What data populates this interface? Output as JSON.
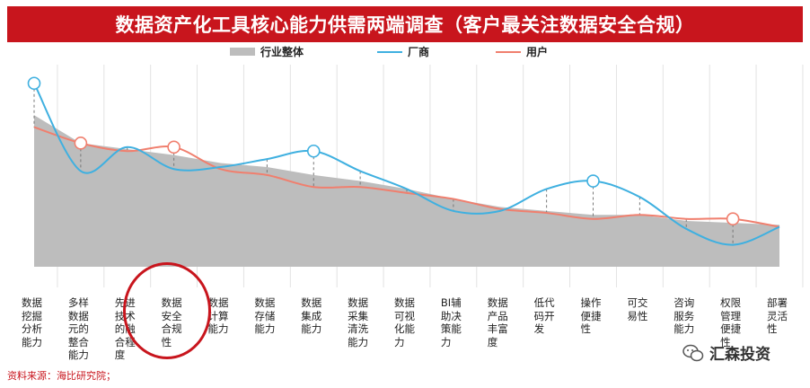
{
  "title": "数据资产化工具核心能力供需两端调查（客户最关注数据安全合规）",
  "legend": {
    "overall": "行业整体",
    "vendor": "厂商",
    "user": "用户"
  },
  "source": "资料来源：海比研究院；",
  "watermark": "汇森投资",
  "colors": {
    "title_bg": "#c8151d",
    "overall": "#bdbdbd",
    "vendor": "#3fb0e0",
    "user": "#f07f6e",
    "highlight": "#c8151d"
  },
  "chart_data": {
    "type": "area",
    "categories": [
      "数据挖掘分析能力",
      "多样数据元的整合能力",
      "先进技术的融合程度",
      "数据安全合规性",
      "数据计算能力",
      "数据存储能力",
      "数据集成能力",
      "数据采集清洗能力",
      "数据可视化能力",
      "BI辅助决策能力",
      "数据产品丰富度",
      "低代码开发",
      "操作便捷性",
      "可交易性",
      "咨询服务能力",
      "权限管理便捷性",
      "部署灵活性"
    ],
    "series": [
      {
        "name": "行业整体",
        "values": [
          7.6,
          6.2,
          5.9,
          5.6,
          5.2,
          5.0,
          4.6,
          4.3,
          3.9,
          3.4,
          3.0,
          2.8,
          2.6,
          2.6,
          2.3,
          2.2,
          2.1
        ]
      },
      {
        "name": "厂商",
        "values": [
          9.2,
          4.8,
          6.0,
          4.9,
          5.0,
          5.4,
          5.8,
          4.8,
          3.9,
          2.8,
          2.8,
          3.9,
          4.3,
          3.5,
          1.9,
          1.1,
          2.0
        ]
      },
      {
        "name": "用户",
        "values": [
          7.0,
          6.2,
          5.8,
          6.0,
          4.9,
          4.6,
          4.0,
          4.0,
          3.7,
          3.4,
          2.9,
          2.7,
          2.4,
          2.6,
          2.4,
          2.4,
          2.0
        ]
      }
    ],
    "marked_points": {
      "厂商": [
        0,
        6,
        12
      ],
      "用户": [
        1,
        3,
        15
      ]
    },
    "ylim": [
      0,
      10
    ],
    "highlighted_category": "数据安全合规性",
    "legend_position": "top"
  }
}
